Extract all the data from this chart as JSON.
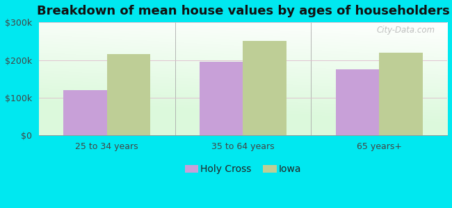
{
  "title": "Breakdown of mean house values by ages of householders",
  "categories": [
    "25 to 34 years",
    "35 to 64 years",
    "65 years+"
  ],
  "holy_cross_values": [
    120000,
    195000,
    175000
  ],
  "iowa_values": [
    215000,
    250000,
    220000
  ],
  "holy_cross_color": "#c8a0d8",
  "iowa_color": "#bece96",
  "bar_width": 0.32,
  "ylim": [
    0,
    300000
  ],
  "yticks": [
    0,
    100000,
    200000,
    300000
  ],
  "ytick_labels": [
    "$0",
    "$100k",
    "$200k",
    "$300k"
  ],
  "background_outer": "#00e8f0",
  "legend_labels": [
    "Holy Cross",
    "Iowa"
  ],
  "title_fontsize": 13,
  "tick_fontsize": 9,
  "legend_fontsize": 10,
  "watermark": "City-Data.com"
}
